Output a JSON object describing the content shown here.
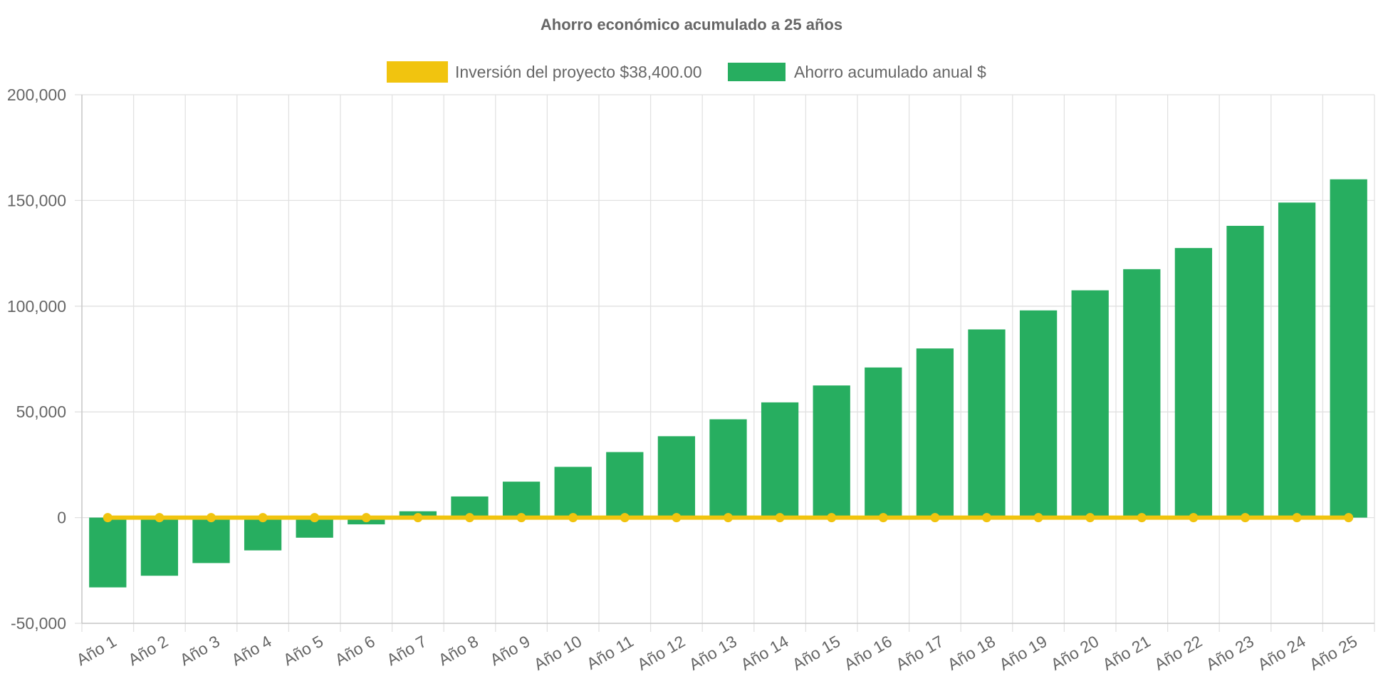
{
  "chart_data": {
    "type": "bar",
    "title": "Ahorro económico acumulado a 25 años",
    "xlabel": "",
    "ylabel": "",
    "categories": [
      "Año 1",
      "Año 2",
      "Año 3",
      "Año 4",
      "Año 5",
      "Año 6",
      "Año 7",
      "Año 8",
      "Año 9",
      "Año 10",
      "Año 11",
      "Año 12",
      "Año 13",
      "Año 14",
      "Año 15",
      "Año 16",
      "Año 17",
      "Año 18",
      "Año 19",
      "Año 20",
      "Año 21",
      "Año 22",
      "Año 23",
      "Año 24",
      "Año 25"
    ],
    "series": [
      {
        "name": "Inversión del proyecto $38,400.00",
        "type": "line",
        "color": "#f1c40f",
        "values": [
          0,
          0,
          0,
          0,
          0,
          0,
          0,
          0,
          0,
          0,
          0,
          0,
          0,
          0,
          0,
          0,
          0,
          0,
          0,
          0,
          0,
          0,
          0,
          0,
          0
        ]
      },
      {
        "name": "Ahorro acumulado anual $",
        "type": "bar",
        "color": "#27ae60",
        "values": [
          -33000,
          -27500,
          -21500,
          -15500,
          -9500,
          -3200,
          3000,
          10000,
          17000,
          24000,
          31000,
          38500,
          46500,
          54500,
          62500,
          71000,
          80000,
          89000,
          98000,
          107500,
          117500,
          127500,
          138000,
          149000,
          160000
        ]
      }
    ],
    "ylim": [
      -50000,
      200000
    ],
    "yticks": [
      "200,000",
      "150,000",
      "100,000",
      "50,000",
      "0",
      "-50,000"
    ],
    "ytick_values": [
      200000,
      150000,
      100000,
      50000,
      0,
      -50000
    ],
    "grid": true,
    "legend_position": "top"
  }
}
